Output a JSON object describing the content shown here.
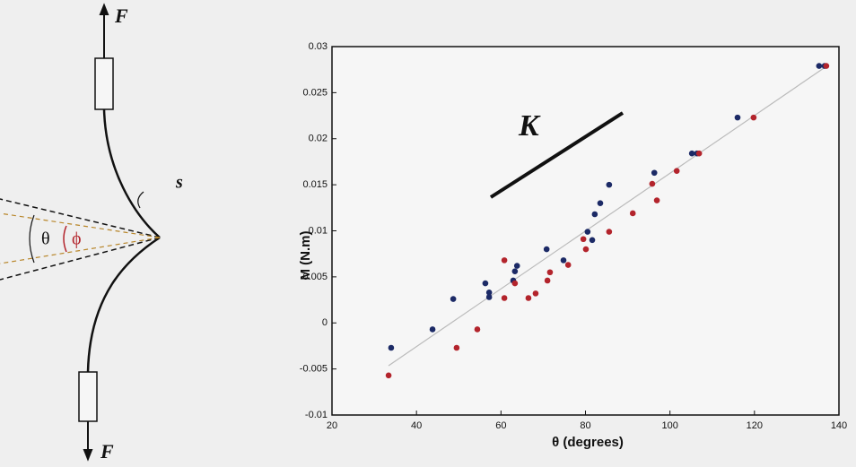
{
  "diagram": {
    "force_top": "F",
    "force_bottom": "F",
    "arc_label": "s",
    "angle_outer": "θ",
    "angle_inner": "ϕ"
  },
  "chart_data": {
    "type": "scatter",
    "xlabel": "θ (degrees)",
    "ylabel": "M (N.m)",
    "slope_label": "K",
    "xlim": [
      20,
      140
    ],
    "xticks": [
      20,
      40,
      60,
      80,
      100,
      120,
      140
    ],
    "ylim": [
      -0.01,
      0.03
    ],
    "yticks": [
      -0.01,
      -0.005,
      0,
      0.005,
      0.01,
      0.015,
      0.02,
      0.025,
      0.03
    ],
    "series": [
      {
        "color": "#1c2a66",
        "x": [
          34.0,
          43.8,
          48.7,
          56.3,
          57.2,
          57.2,
          62.9,
          63.3,
          63.8,
          70.8,
          74.8,
          80.5,
          81.6,
          82.2,
          83.5,
          85.6,
          96.3,
          105.2,
          106.4,
          116.0,
          135.3,
          136.6
        ],
        "values": [
          -0.0027,
          -0.0007,
          0.0026,
          0.0043,
          0.0033,
          0.0028,
          0.0046,
          0.0056,
          0.0062,
          0.008,
          0.0068,
          0.0099,
          0.009,
          0.0118,
          0.013,
          0.015,
          0.0163,
          0.0184,
          0.0184,
          0.0223,
          0.0279,
          0.0279
        ]
      },
      {
        "color": "#b3242c",
        "x": [
          33.4,
          49.5,
          54.4,
          60.8,
          60.8,
          63.3,
          66.5,
          68.2,
          71.0,
          71.6,
          75.9,
          79.5,
          80.1,
          85.6,
          91.2,
          95.8,
          96.9,
          101.6,
          106.9,
          119.8,
          137.0
        ],
        "values": [
          -0.0057,
          -0.0027,
          -0.0007,
          0.0068,
          0.0027,
          0.0043,
          0.0027,
          0.0032,
          0.0046,
          0.0055,
          0.0063,
          0.0091,
          0.008,
          0.0099,
          0.0119,
          0.0151,
          0.0133,
          0.0165,
          0.0184,
          0.0223,
          0.0279
        ]
      }
    ]
  }
}
